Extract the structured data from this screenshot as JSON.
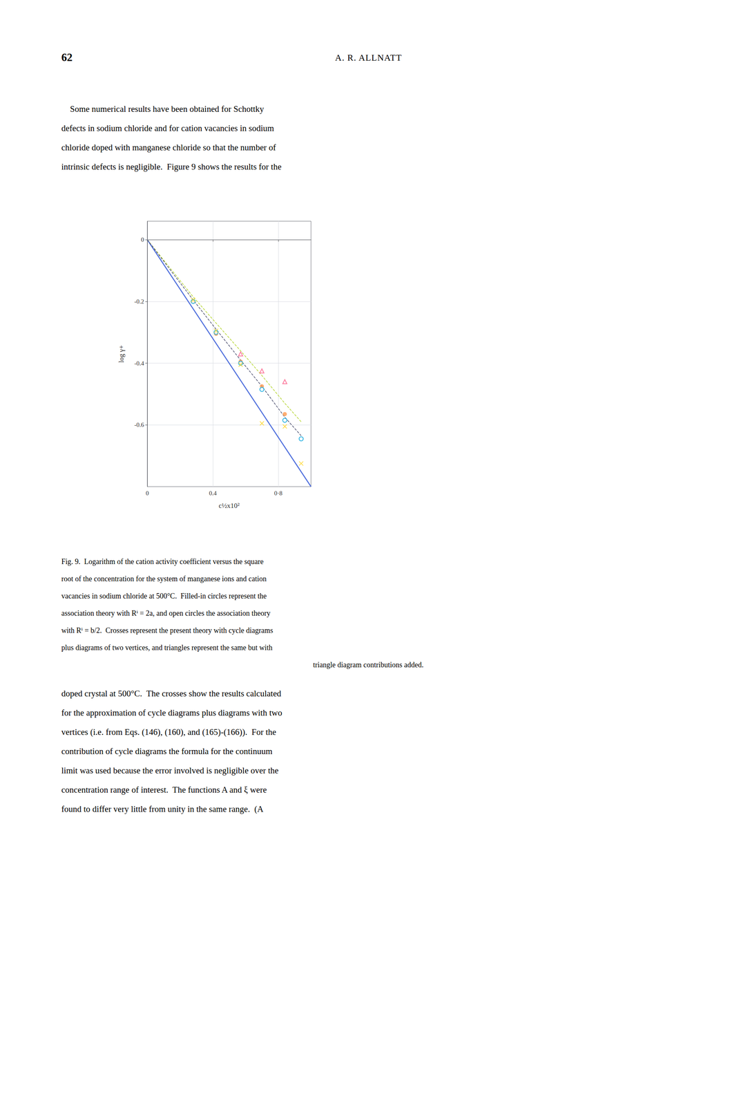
{
  "chart_data": {
    "type": "scatter",
    "xlabel": "c½x10²",
    "ylabel": "log γ+",
    "xlim": [
      0,
      1.0
    ],
    "ylim": [
      -0.8,
      0.06
    ],
    "xticks": [
      0,
      0.4,
      {
        "value": 0.8,
        "label": "0·8"
      }
    ],
    "yticks": [
      0,
      -0.2,
      -0.4,
      -0.6
    ],
    "grid": true,
    "series": [
      {
        "type": "line",
        "line_style": "solid",
        "x": [
          0.0,
          1.0
        ],
        "values": [
          0.0,
          -0.8
        ]
      },
      {
        "type": "line",
        "line_style": "dashed",
        "x": [
          0.0,
          0.28,
          0.42,
          0.57,
          0.7,
          0.84,
          0.94
        ],
        "values": [
          0.0,
          -0.185,
          -0.27,
          -0.36,
          -0.44,
          -0.53,
          -0.59
        ]
      },
      {
        "type": "line",
        "line_style": "dashed",
        "x": [
          0.0,
          0.28,
          0.42,
          0.57,
          0.7,
          0.84,
          0.94
        ],
        "values": [
          0.0,
          -0.195,
          -0.29,
          -0.39,
          -0.475,
          -0.575,
          -0.635
        ]
      },
      {
        "type": "scatter",
        "marker": "filled_circle",
        "x": [
          0.28,
          0.42,
          0.57,
          0.7,
          0.84
        ],
        "values": [
          -0.2,
          -0.305,
          -0.395,
          -0.475,
          -0.565
        ]
      },
      {
        "type": "scatter",
        "marker": "open_circle",
        "x": [
          0.28,
          0.42,
          0.57,
          0.7,
          0.84,
          0.94
        ],
        "values": [
          -0.2,
          -0.3,
          -0.4,
          -0.485,
          -0.585,
          -0.645
        ]
      },
      {
        "type": "scatter",
        "marker": "cross",
        "x": [
          0.28,
          0.42,
          0.57,
          0.7,
          0.84,
          0.94
        ],
        "values": [
          -0.195,
          -0.295,
          -0.405,
          -0.595,
          -0.605,
          -0.725
        ]
      },
      {
        "type": "scatter",
        "marker": "open_triangle",
        "x": [
          0.57,
          0.7,
          0.84
        ],
        "values": [
          -0.37,
          -0.425,
          -0.46
        ]
      }
    ],
    "annotations": {
      "page_number": "62",
      "page_author": "A. R. ALLNATT",
      "body": [
        "    Some numerical results have been obtained for Schottky",
        "defects in sodium chloride and for cation vacancies in sodium",
        "chloride doped with manganese chloride so that the number of",
        "intrinsic defects is negligible.  Figure 9 shows the results for the"
      ],
      "caption": [
        "Fig. 9.  Logarithm of the cation activity coefficient versus the square",
        "root of the concentration for the system of manganese ions and cation",
        "vacancies in sodium chloride at 500°C.  Filled-in circles represent the",
        "association theory with Rⁱ = 2a, and open circles the association theory",
        "with Rⁱ = b/2.  Crosses represent the present theory with cycle diagrams",
        "plus diagrams of two vertices, and triangles represent the same but with",
        "triangle diagram contributions added."
      ],
      "bottom": [
        "doped crystal at 500°C.  The crosses show the results calculated",
        "for the approximation of cycle diagrams plus diagrams with two",
        "vertices (i.e. from Eqs. (146), (160), and (165)-(166)).  For the",
        "contribution of cycle diagrams the formula for the continuum",
        "limit was used because the error involved is negligible over the",
        "concentration range of interest.  The functions A and ξ were",
        "found to differ very little from unity in the same range.  (A"
      ]
    }
  }
}
